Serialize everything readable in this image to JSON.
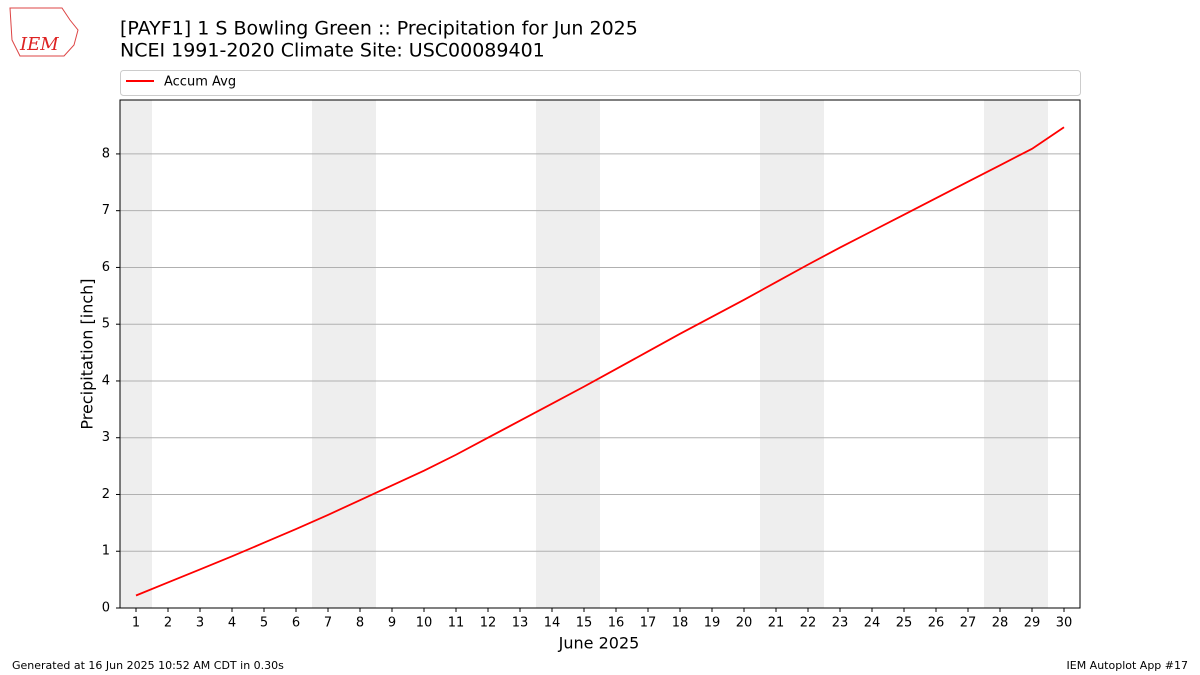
{
  "chart_data": {
    "type": "line",
    "title": "[PAYF1] 1 S Bowling Green :: Precipitation for Jun 2025",
    "subtitle": "NCEI 1991-2020 Climate Site: USC00089401",
    "x_label": "June 2025",
    "y_label": "Precipitation [inch]",
    "x": [
      1,
      2,
      3,
      4,
      5,
      6,
      7,
      8,
      9,
      10,
      11,
      12,
      13,
      14,
      15,
      16,
      17,
      18,
      19,
      20,
      21,
      22,
      23,
      24,
      25,
      26,
      27,
      28,
      29,
      30
    ],
    "series": [
      {
        "name": "Accum Avg",
        "color": "#ff0000",
        "values": [
          0.22,
          0.45,
          0.68,
          0.91,
          1.15,
          1.39,
          1.64,
          1.9,
          2.16,
          2.42,
          2.7,
          3.0,
          3.3,
          3.6,
          3.9,
          4.21,
          4.52,
          4.83,
          5.13,
          5.43,
          5.74,
          6.05,
          6.35,
          6.64,
          6.93,
          7.22,
          7.51,
          7.8,
          8.09,
          8.47
        ]
      }
    ],
    "shaded_ranges": [
      [
        0.5,
        1.5
      ],
      [
        6.5,
        8.5
      ],
      [
        13.5,
        15.5
      ],
      [
        20.5,
        22.5
      ],
      [
        27.5,
        29.5
      ]
    ],
    "shade_color": "#eeeeee",
    "xlim": [
      0.5,
      30.5
    ],
    "xticks": [
      1,
      2,
      3,
      4,
      5,
      6,
      7,
      8,
      9,
      10,
      11,
      12,
      13,
      14,
      15,
      16,
      17,
      18,
      19,
      20,
      21,
      22,
      23,
      24,
      25,
      26,
      27,
      28,
      29,
      30
    ],
    "ylim": [
      0,
      8.95
    ],
    "yticks": [
      0,
      1,
      2,
      3,
      4,
      5,
      6,
      7,
      8
    ],
    "grid": true,
    "legend": "top"
  },
  "logo": "IEM",
  "footer_left": "Generated at 16 Jun 2025 10:52 AM CDT in 0.30s",
  "footer_right": "IEM Autoplot App #17"
}
